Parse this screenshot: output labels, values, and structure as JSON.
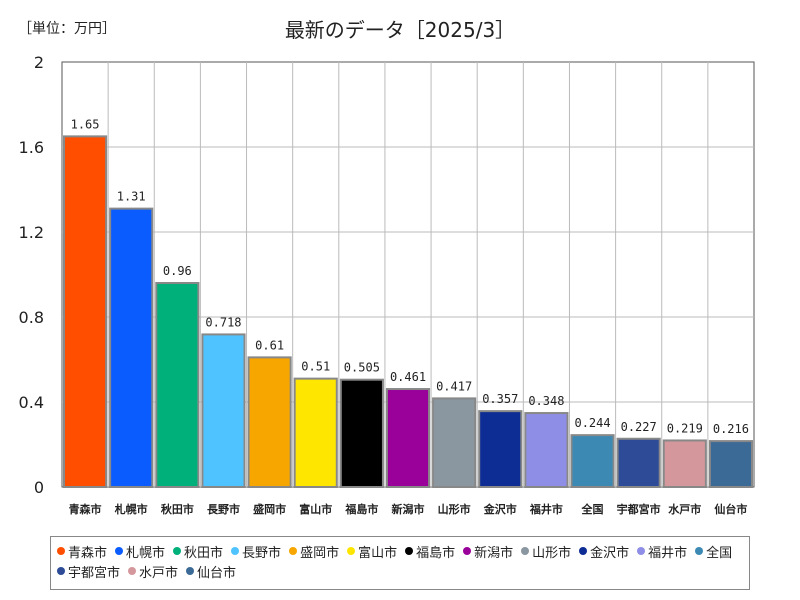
{
  "unit_label": "［単位：万円］",
  "chart_data": {
    "type": "bar",
    "title": "最新のデータ［2025/3］",
    "xlabel": "",
    "ylabel": "",
    "ylim": [
      0,
      2
    ],
    "yticks": [
      0,
      0.4,
      0.8,
      1.2,
      1.6,
      2
    ],
    "ytick_labels": [
      "0",
      "0.4",
      "0.8",
      "1.2",
      "1.6",
      "2"
    ],
    "grid": true,
    "legend_position": "bottom",
    "categories": [
      "青森市",
      "札幌市",
      "秋田市",
      "長野市",
      "盛岡市",
      "富山市",
      "福島市",
      "新潟市",
      "山形市",
      "金沢市",
      "福井市",
      "全国",
      "宇都宮市",
      "水戸市",
      "仙台市"
    ],
    "values": [
      1.65,
      1.31,
      0.96,
      0.718,
      0.61,
      0.51,
      0.505,
      0.461,
      0.417,
      0.357,
      0.348,
      0.244,
      0.227,
      0.219,
      0.216
    ],
    "value_labels": [
      "1.65",
      "1.31",
      "0.96",
      "0.718",
      "0.61",
      "0.51",
      "0.505",
      "0.461",
      "0.417",
      "0.357",
      "0.348",
      "0.244",
      "0.227",
      "0.219",
      "0.216"
    ],
    "colors": [
      "#ff4e00",
      "#0a5cff",
      "#00b07a",
      "#4fc3ff",
      "#f7a600",
      "#ffe600",
      "#000000",
      "#9a009a",
      "#8a96a0",
      "#0d2d94",
      "#8f8ee6",
      "#3c8ab4",
      "#2d4b96",
      "#d4989c",
      "#3c6a96"
    ]
  }
}
